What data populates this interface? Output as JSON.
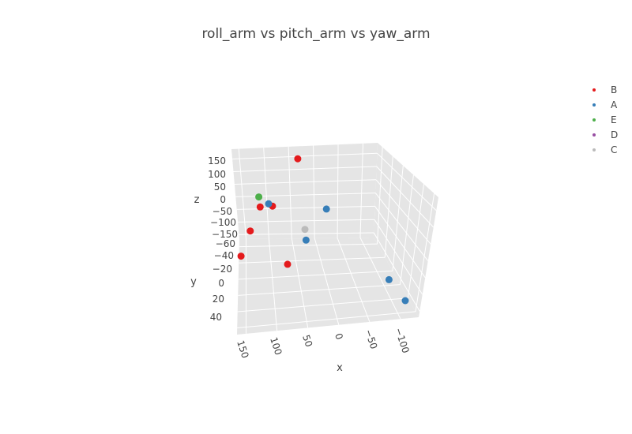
{
  "chart_data": {
    "type": "scatter3d",
    "title": "roll_arm vs pitch_arm vs yaw_arm",
    "xlabel": "x",
    "ylabel": "y",
    "zlabel": "z",
    "x_ticks": [
      "150",
      "100",
      "50",
      "0",
      "−50",
      "−100"
    ],
    "y_ticks": [
      "−60",
      "−40",
      "−20",
      "0",
      "20",
      "40"
    ],
    "z_ticks": [
      "150",
      "100",
      "50",
      "0",
      "−50",
      "−100",
      "−150"
    ],
    "legend": [
      {
        "name": "B",
        "color": "#e41a1c"
      },
      {
        "name": "A",
        "color": "#377eb8"
      },
      {
        "name": "E",
        "color": "#4daf4a"
      },
      {
        "name": "D",
        "color": "#984ea3"
      },
      {
        "name": "C",
        "color": "#bbbbbb"
      }
    ],
    "series": [
      {
        "name": "B",
        "color": "#e41a1c",
        "points": [
          {
            "x": 35,
            "y": -62,
            "z": 180
          },
          {
            "x": 118,
            "y": -58,
            "z": -5
          },
          {
            "x": 92,
            "y": -60,
            "z": -10
          },
          {
            "x": 140,
            "y": -48,
            "z": -70
          },
          {
            "x": 160,
            "y": -40,
            "z": -150
          },
          {
            "x": 70,
            "y": -30,
            "z": -160
          }
        ]
      },
      {
        "name": "A",
        "color": "#377eb8",
        "points": [
          {
            "x": 100,
            "y": -60,
            "z": 0
          },
          {
            "x": -20,
            "y": -58,
            "z": -20
          },
          {
            "x": 30,
            "y": -40,
            "z": -90
          },
          {
            "x": -95,
            "y": 20,
            "z": -80
          },
          {
            "x": -110,
            "y": 40,
            "z": -120
          }
        ]
      },
      {
        "name": "E",
        "color": "#4daf4a",
        "points": [
          {
            "x": 120,
            "y": -60,
            "z": 30
          }
        ]
      },
      {
        "name": "D",
        "color": "#984ea3",
        "points": []
      },
      {
        "name": "C",
        "color": "#bbbbbb",
        "points": [
          {
            "x": 30,
            "y": -45,
            "z": -60
          }
        ]
      }
    ]
  }
}
